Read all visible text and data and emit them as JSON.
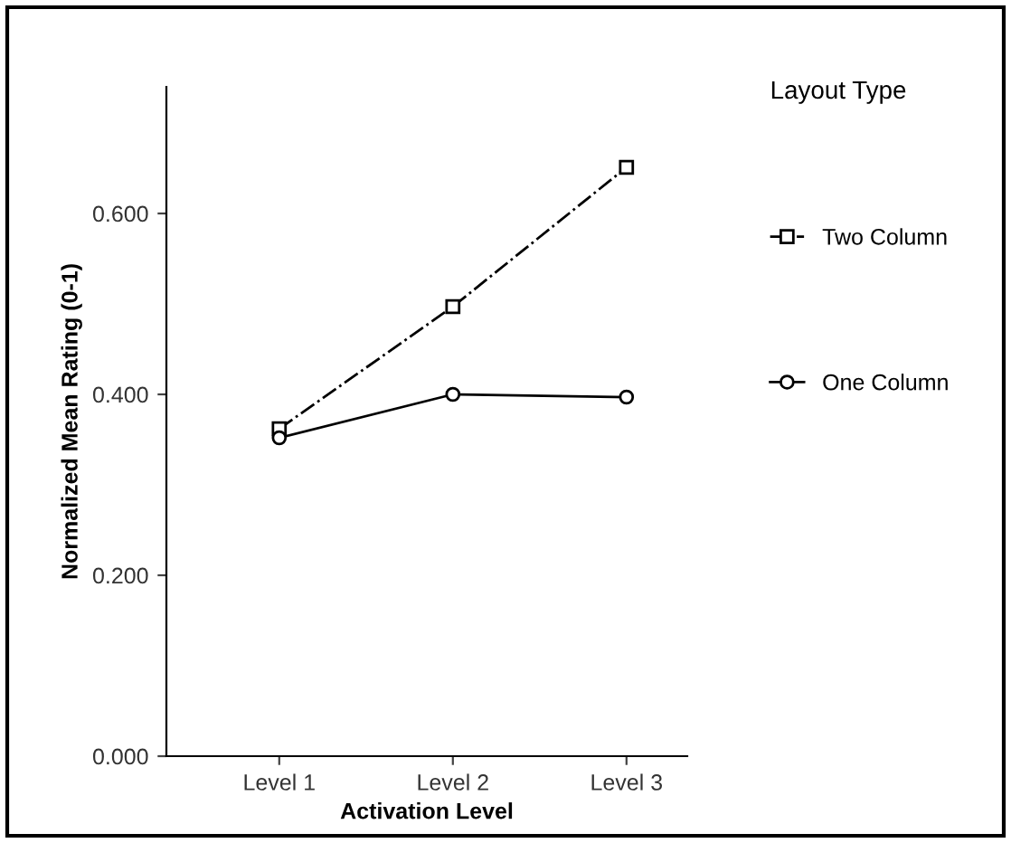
{
  "chart_data": {
    "type": "line",
    "xlabel": "Activation Level",
    "ylabel": "Normalized Mean Rating (0-1)",
    "legend_title": "Layout Type",
    "categories": [
      "Level 1",
      "Level 2",
      "Level 3"
    ],
    "series": [
      {
        "name": "Two Column",
        "color": "#000000",
        "values": [
          0.362,
          0.497,
          0.651
        ],
        "marker": "square",
        "line_style": "dashed"
      },
      {
        "name": "One Column",
        "color": "#000000",
        "values": [
          0.352,
          0.4,
          0.397
        ],
        "marker": "circle",
        "line_style": "solid"
      }
    ],
    "ylim": [
      0,
      0.74
    ],
    "yticks": [
      {
        "value": 0,
        "label": "0.000"
      },
      {
        "value": 0.2,
        "label": "0.200"
      },
      {
        "value": 0.4,
        "label": "0.400"
      },
      {
        "value": 0.6,
        "label": "0.600"
      }
    ],
    "grid": false,
    "legend": "right"
  }
}
